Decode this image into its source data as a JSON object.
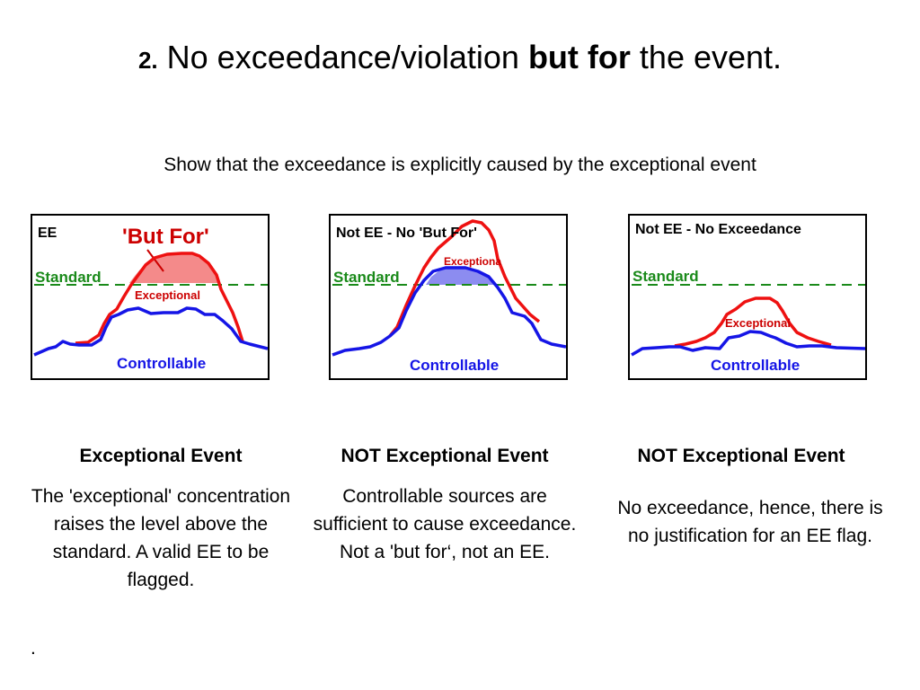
{
  "title": {
    "number": "2.",
    "part1": "No exceedance/violation",
    "bold": "but for",
    "part2": "the event."
  },
  "subtitle": "Show that the exceedance is explicitly caused by the exceptional event",
  "panels": [
    {
      "label": "EE",
      "callout": "'But For'",
      "standard": "Standard",
      "exceptional": "Exceptional",
      "controllable": "Controllable",
      "heading": "Exceptional Event",
      "text": "The 'exceptional' concentration raises the level above the standard. A valid EE to be flagged."
    },
    {
      "label": "Not EE - No 'But For'",
      "standard": "Standard",
      "exceptional": "Exceptiona",
      "controllable": "Controllable",
      "heading": "NOT Exceptional Event",
      "text": "Controllable sources are sufficient to cause exceedance. Not a 'but for‘, not an EE."
    },
    {
      "label": "Not EE - No Exceedance",
      "standard": "Standard",
      "exceptional": "Exceptional",
      "controllable": "Controllable",
      "heading": "NOT Exceptional Event",
      "text": "No exceedance, hence, there is no justification for an EE flag."
    }
  ],
  "footnote": ".",
  "colors": {
    "exceptional_line": "#ee1111",
    "controllable_line": "#1515e6",
    "standard_line": "#1a8a1a",
    "but_for_fill": "#f48a8a",
    "overlap_fill": "#8c8cf0"
  }
}
